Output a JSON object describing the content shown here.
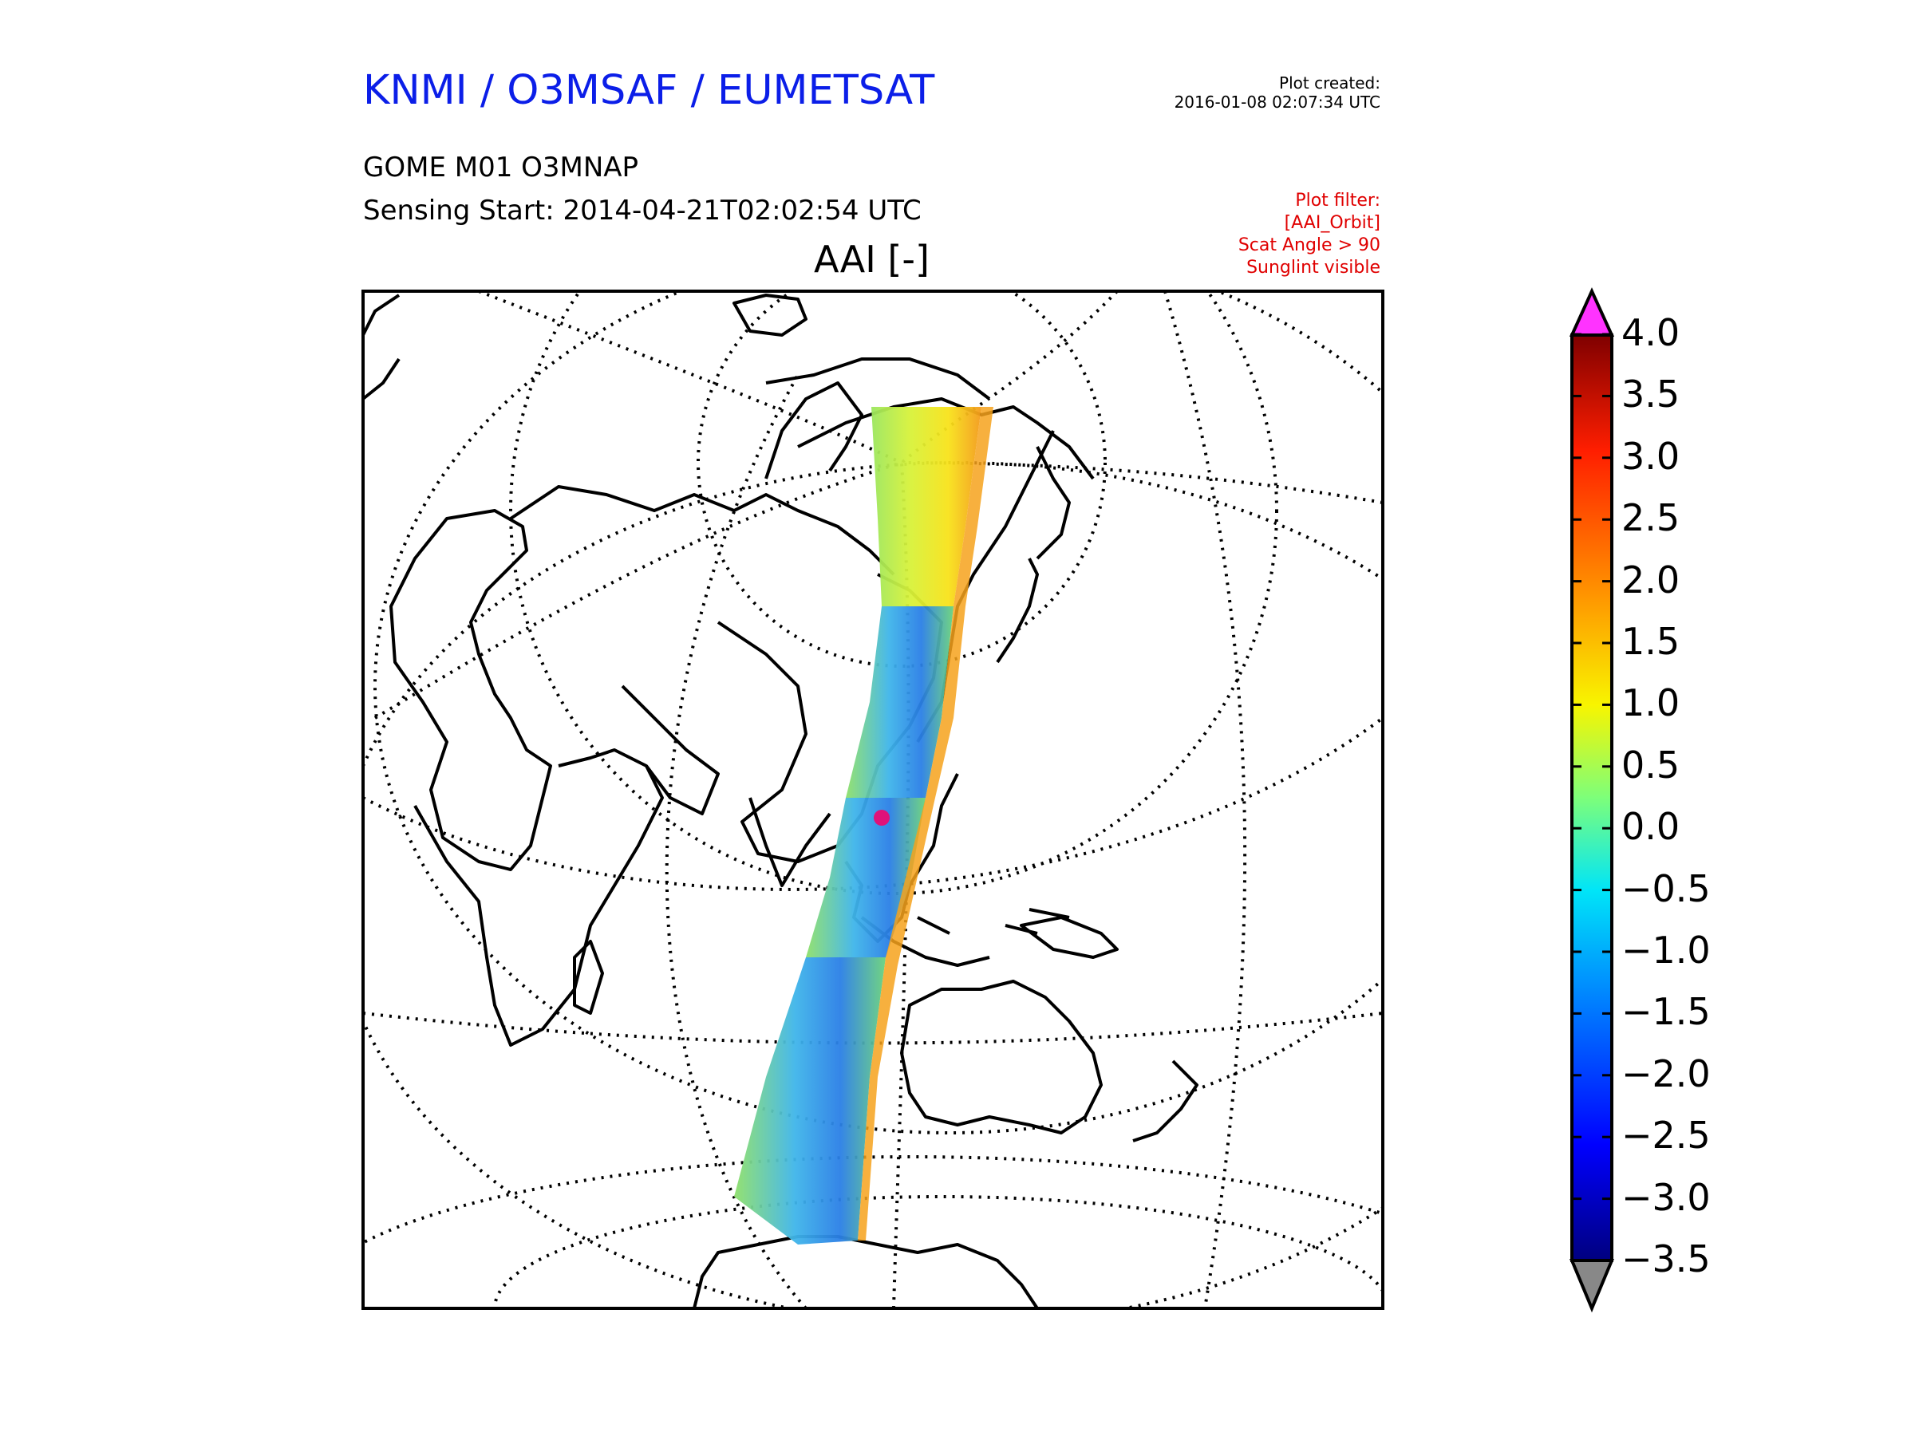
{
  "header": {
    "org_title": "KNMI / O3MSAF / EUMETSAT",
    "created_label": "Plot created:",
    "created_value": "2016-01-08 02:07:34 UTC",
    "product": "GOME M01 O3MNAP",
    "sensing_start": "Sensing Start: 2014-04-21T02:02:54 UTC"
  },
  "filter": {
    "lines": [
      "Plot filter:",
      "[AAI_Orbit]",
      "Scat Angle > 90",
      "Sunglint visible"
    ],
    "color": "#e00000"
  },
  "map": {
    "title": "AAI [-]",
    "projection": "polar-graticule",
    "grid": "dotted",
    "coastline_color": "#000000"
  },
  "colorbar": {
    "ticks": [
      "4.0",
      "3.5",
      "3.0",
      "2.5",
      "2.0",
      "1.5",
      "1.0",
      "0.5",
      "0.0",
      "−0.5",
      "−1.0",
      "−1.5",
      "−2.0",
      "−2.5",
      "−3.0",
      "−3.5"
    ],
    "min": -3.5,
    "max": 4.0,
    "over_color": "#ff33ff",
    "under_color": "#888888",
    "colormap": [
      "#00007f",
      "#0000ff",
      "#0080ff",
      "#00e5f8",
      "#7dff7a",
      "#f8f500",
      "#ff9400",
      "#ff1e00",
      "#7f0000"
    ]
  }
}
